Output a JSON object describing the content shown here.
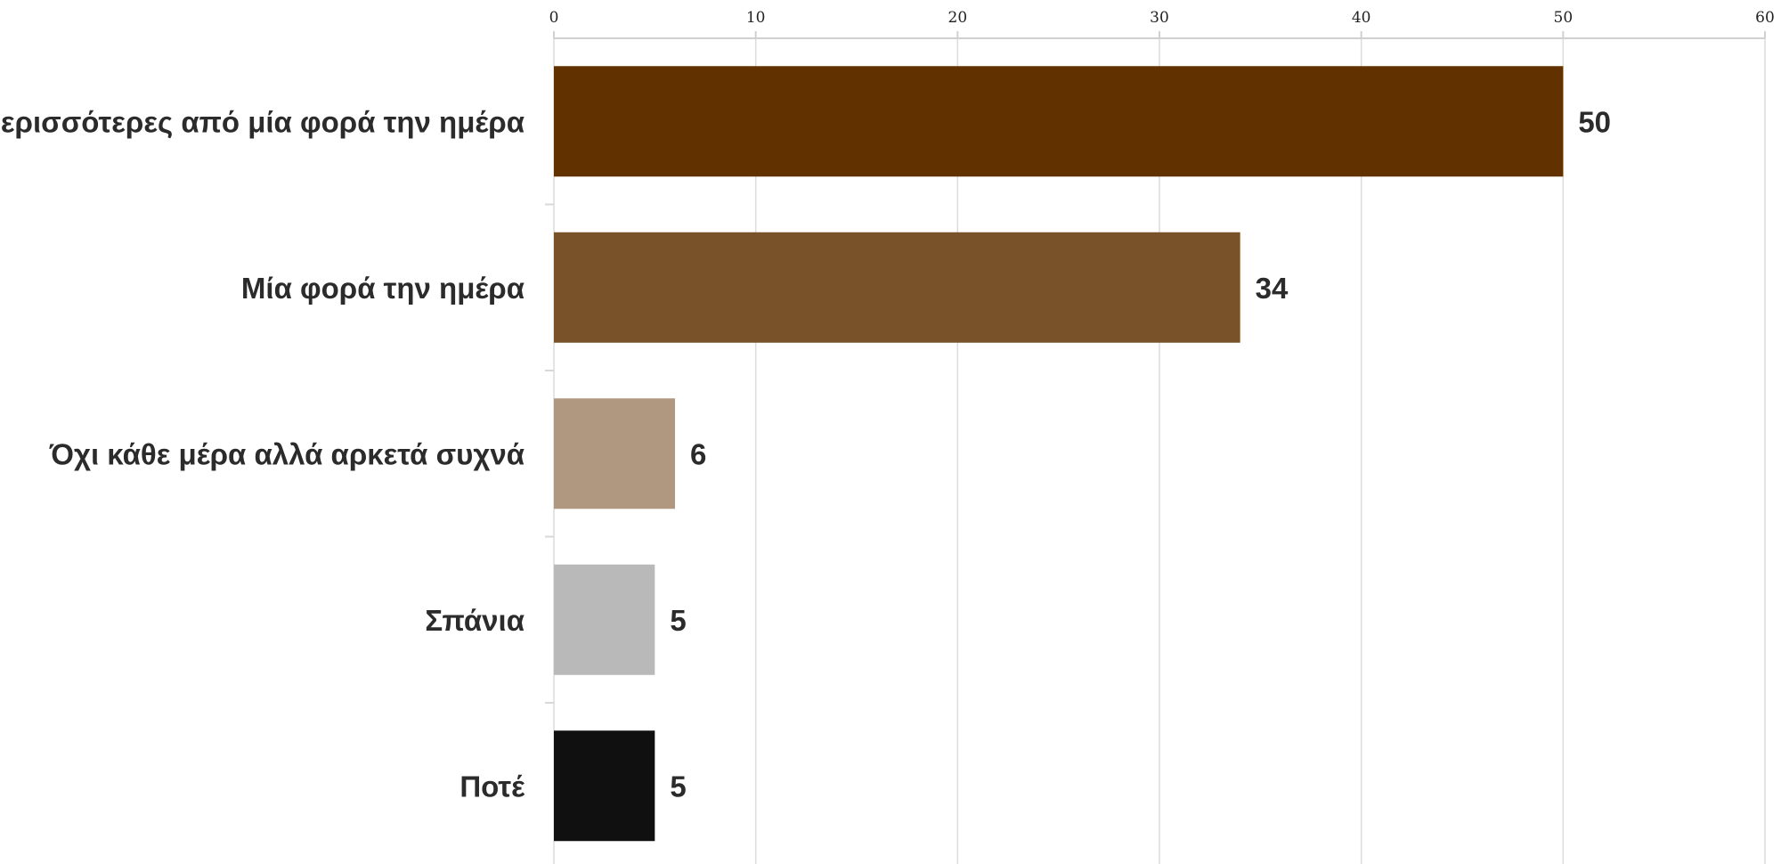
{
  "chart_data": {
    "type": "bar",
    "orientation": "horizontal",
    "title": "",
    "xlabel": "",
    "ylabel": "",
    "xlim": [
      0,
      60
    ],
    "x_ticks": [
      0,
      10,
      20,
      30,
      40,
      50,
      60
    ],
    "x_axis_position": "top",
    "grid": true,
    "legend": "none",
    "categories": [
      "Περισσότερες από μία φορά την ημέρα",
      "Μία φορά την ημέρα",
      "Όχι κάθε μέρα αλλά αρκετά συχνά",
      "Σπάνια",
      "Ποτέ"
    ],
    "values": [
      50,
      34,
      6,
      5,
      5
    ],
    "value_labels": [
      "50",
      "34",
      "6",
      "5",
      "5"
    ],
    "colors": [
      "#623100",
      "#7a522a",
      "#b09780",
      "#b9b9b9",
      "#101010"
    ]
  }
}
